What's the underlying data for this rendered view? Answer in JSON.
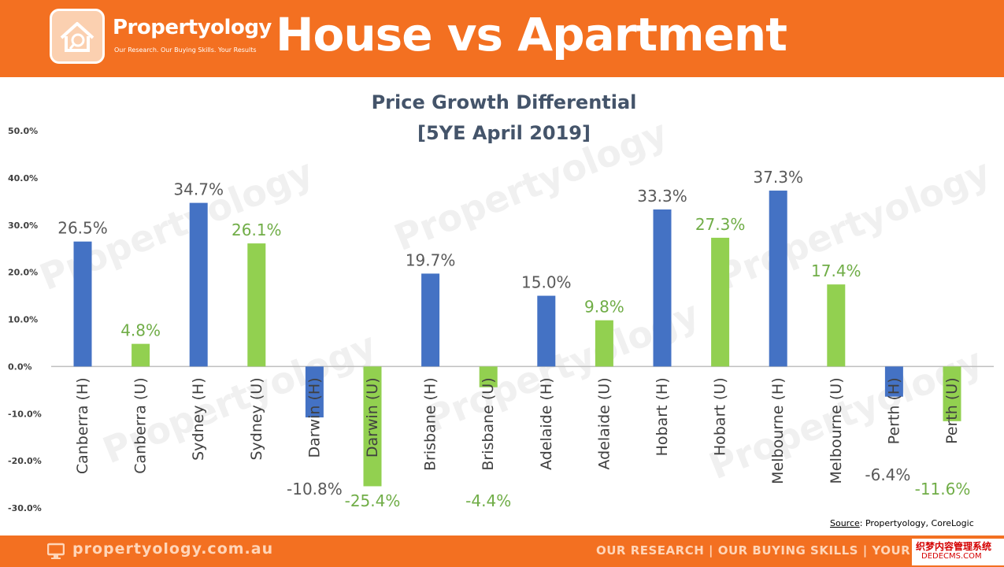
{
  "header": {
    "brand_name": "Propertyology",
    "brand_tagline": "Our Research. Our Buying Skills. Your Results",
    "main_title": "House vs Apartment"
  },
  "footer": {
    "url": "propertyology.com.au",
    "slogan": "OUR RESEARCH | OUR BUYING SKILLS | YOUR RE"
  },
  "watermark": {
    "line1": "织梦内容管理系统",
    "line2": "DEDECMS.COM"
  },
  "source": {
    "label": "Source",
    "text": ": Propertyology, CoreLogic"
  },
  "colors": {
    "brand_orange": "#f37021",
    "house_bar": "#4472c4",
    "unit_bar": "#92d050",
    "house_label": "#595959",
    "unit_label": "#70ad47"
  },
  "chart_data": {
    "type": "bar",
    "title": "Price Growth Differential",
    "subtitle": "[5YE April 2019]",
    "categories": [
      "Canberra (H)",
      "Canberra (U)",
      "Sydney (H)",
      "Sydney (U)",
      "Darwin (H)",
      "Darwin (U)",
      "Brisbane (H)",
      "Brisbane (U)",
      "Adelaide (H)",
      "Adelaide (U)",
      "Hobart (H)",
      "Hobart (U)",
      "Melbourne (H)",
      "Melbourne (U)",
      "Perth (H)",
      "Perth (U)"
    ],
    "values": [
      26.5,
      4.8,
      34.7,
      26.1,
      -10.8,
      -25.4,
      19.7,
      -4.4,
      15.0,
      9.8,
      33.3,
      27.3,
      37.3,
      17.4,
      -6.4,
      -11.6
    ],
    "value_labels": [
      "26.5%",
      "4.8%",
      "34.7%",
      "26.1%",
      "-10.8%",
      "-25.4%",
      "19.7%",
      "-4.4%",
      "15.0%",
      "9.8%",
      "33.3%",
      "27.3%",
      "37.3%",
      "17.4%",
      "-6.4%",
      "-11.6%"
    ],
    "bar_types": [
      "house",
      "unit",
      "house",
      "unit",
      "house",
      "unit",
      "house",
      "unit",
      "house",
      "unit",
      "house",
      "unit",
      "house",
      "unit",
      "house",
      "unit"
    ],
    "y_ticks": [
      50,
      40,
      30,
      20,
      10,
      0,
      -10,
      -20,
      -30
    ],
    "y_tick_labels": [
      "50.0%",
      "40.0%",
      "30.0%",
      "20.0%",
      "10.0%",
      "0.0%",
      "-10.0%",
      "-20.0%",
      "-30.0%"
    ],
    "ylim": [
      -30,
      50
    ],
    "grid": false,
    "legend": "none",
    "watermark_text": "Propertyology"
  }
}
